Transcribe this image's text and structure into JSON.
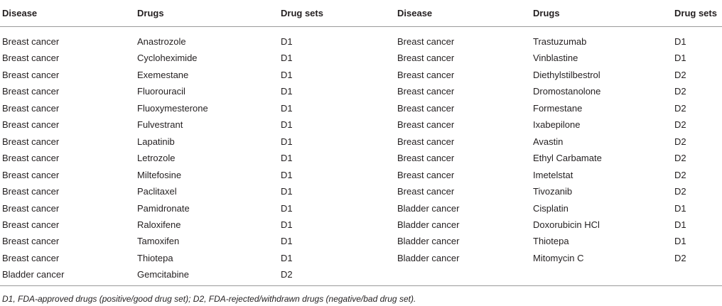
{
  "table": {
    "columns": [
      "Disease",
      "Drugs",
      "Drug sets",
      "Disease",
      "Drugs",
      "Drug sets"
    ],
    "rows": [
      [
        "Breast cancer",
        "Anastrozole",
        "D1",
        "Breast cancer",
        "Trastuzumab",
        "D1"
      ],
      [
        "Breast cancer",
        "Cycloheximide",
        "D1",
        "Breast cancer",
        "Vinblastine",
        "D1"
      ],
      [
        "Breast cancer",
        "Exemestane",
        "D1",
        "Breast cancer",
        "Diethylstilbestrol",
        "D2"
      ],
      [
        "Breast cancer",
        "Fluorouracil",
        "D1",
        "Breast cancer",
        "Dromostanolone",
        "D2"
      ],
      [
        "Breast cancer",
        "Fluoxymesterone",
        "D1",
        "Breast cancer",
        "Formestane",
        "D2"
      ],
      [
        "Breast cancer",
        "Fulvestrant",
        "D1",
        "Breast cancer",
        "Ixabepilone",
        "D2"
      ],
      [
        "Breast cancer",
        "Lapatinib",
        "D1",
        "Breast cancer",
        "Avastin",
        "D2"
      ],
      [
        "Breast cancer",
        "Letrozole",
        "D1",
        "Breast cancer",
        "Ethyl Carbamate",
        "D2"
      ],
      [
        "Breast cancer",
        "Miltefosine",
        "D1",
        "Breast cancer",
        "Imetelstat",
        "D2"
      ],
      [
        "Breast cancer",
        "Paclitaxel",
        "D1",
        "Breast cancer",
        "Tivozanib",
        "D2"
      ],
      [
        "Breast cancer",
        "Pamidronate",
        "D1",
        "Bladder cancer",
        "Cisplatin",
        "D1"
      ],
      [
        "Breast cancer",
        "Raloxifene",
        "D1",
        "Bladder cancer",
        "Doxorubicin HCl",
        "D1"
      ],
      [
        "Breast cancer",
        "Tamoxifen",
        "D1",
        "Bladder cancer",
        "Thiotepa",
        "D1"
      ],
      [
        "Breast cancer",
        "Thiotepa",
        "D1",
        "Bladder cancer",
        "Mitomycin C",
        "D2"
      ],
      [
        "Bladder cancer",
        "Gemcitabine",
        "D2"
      ]
    ],
    "footnote": "D1, FDA-approved drugs (positive/good drug set); D2, FDA-rejected/withdrawn drugs (negative/bad drug set)."
  }
}
